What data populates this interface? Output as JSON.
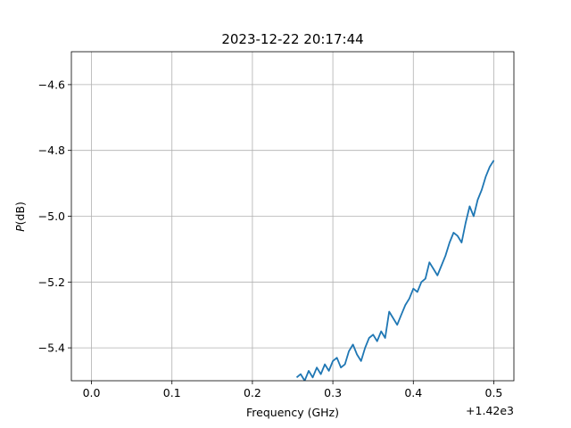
{
  "chart_data": {
    "type": "line",
    "title": "2023-12-22 20:17:44",
    "xlabel": "Frequency (GHz)",
    "ylabel_italic": "P",
    "ylabel_rest": "(dB)",
    "x_offset_label": "+1.42e3",
    "xlim": [
      1419.975,
      1420.525
    ],
    "ylim": [
      -5.5,
      -4.5
    ],
    "grid": true,
    "x_ticks": [
      1420.0,
      1420.1,
      1420.2,
      1420.3,
      1420.4,
      1420.5
    ],
    "x_tick_labels": [
      "0.0",
      "0.1",
      "0.2",
      "0.3",
      "0.4",
      "0.5"
    ],
    "y_ticks": [
      -5.4,
      -5.2,
      -5.0,
      -4.8,
      -4.6
    ],
    "y_tick_labels": [
      "−5.4",
      "−5.2",
      "−5.0",
      "−4.8",
      "−4.6"
    ],
    "line_color": "#1f77b4",
    "series": [
      {
        "x": [
          1420.255,
          1420.26,
          1420.265,
          1420.27,
          1420.275,
          1420.28,
          1420.285,
          1420.29,
          1420.295,
          1420.3,
          1420.305,
          1420.31,
          1420.315,
          1420.32,
          1420.325,
          1420.33,
          1420.335,
          1420.34,
          1420.345,
          1420.35,
          1420.355,
          1420.36,
          1420.365,
          1420.37,
          1420.375,
          1420.38,
          1420.385,
          1420.39,
          1420.395,
          1420.4,
          1420.405,
          1420.41,
          1420.415,
          1420.42,
          1420.425,
          1420.43,
          1420.435,
          1420.44,
          1420.445,
          1420.45,
          1420.455,
          1420.46,
          1420.465,
          1420.47,
          1420.475,
          1420.48,
          1420.485,
          1420.49,
          1420.495,
          1420.5
        ],
        "y": [
          -5.49,
          -5.48,
          -5.5,
          -5.47,
          -5.49,
          -5.46,
          -5.48,
          -5.45,
          -5.47,
          -5.44,
          -5.43,
          -5.46,
          -5.45,
          -5.41,
          -5.39,
          -5.42,
          -5.44,
          -5.4,
          -5.37,
          -5.36,
          -5.38,
          -5.35,
          -5.37,
          -5.29,
          -5.31,
          -5.33,
          -5.3,
          -5.27,
          -5.25,
          -5.22,
          -5.23,
          -5.2,
          -5.19,
          -5.14,
          -5.16,
          -5.18,
          -5.15,
          -5.12,
          -5.08,
          -5.05,
          -5.06,
          -5.08,
          -5.02,
          -4.97,
          -5.0,
          -4.95,
          -4.92,
          -4.88,
          -4.85,
          -4.83
        ]
      }
    ]
  }
}
